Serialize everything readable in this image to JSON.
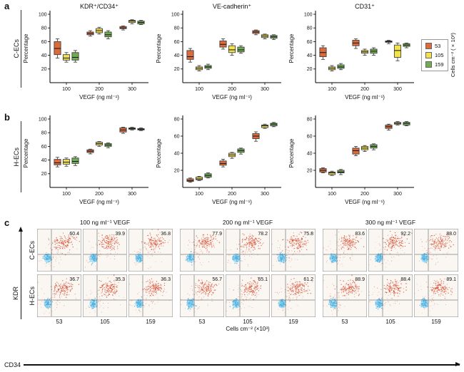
{
  "panels": {
    "a": {
      "label": "a",
      "row_label": "C-ECs"
    },
    "b": {
      "label": "b",
      "row_label": "H-ECs"
    },
    "c": {
      "label": "c"
    }
  },
  "legend": {
    "title": "Cells cm⁻² (×10³)",
    "items": [
      {
        "label": "53",
        "color": "#DC6B3C"
      },
      {
        "label": "105",
        "color": "#F2E24B"
      },
      {
        "label": "159",
        "color": "#6FAD50"
      }
    ]
  },
  "chart_data": [
    {
      "type": "box",
      "panel": "a",
      "group": "C-ECs",
      "title": "KDR⁺/CD34⁺",
      "xlabel": "VEGF (ng ml⁻¹)",
      "ylabel": "Percentage",
      "ylim": [
        0,
        100
      ],
      "y_ticks": [
        20,
        40,
        60,
        80,
        100
      ],
      "categories": [
        100,
        200,
        300
      ],
      "series": [
        {
          "name": "53",
          "color": "#DC6B3C",
          "boxes": [
            [
              36,
              41,
              50,
              60,
              64
            ],
            [
              68,
              70,
              72,
              74,
              76
            ],
            [
              77,
              79,
              80,
              82,
              83
            ]
          ]
        },
        {
          "name": "105",
          "color": "#F2E24B",
          "boxes": [
            [
              30,
              33,
              36,
              41,
              44
            ],
            [
              71,
              73,
              76,
              79,
              81
            ],
            [
              86,
              88,
              90,
              91,
              92
            ]
          ]
        },
        {
          "name": "159",
          "color": "#6FAD50",
          "boxes": [
            [
              30,
              33,
              37,
              44,
              47
            ],
            [
              64,
              67,
              70,
              74,
              76
            ],
            [
              85,
              86,
              88,
              90,
              91
            ]
          ]
        }
      ]
    },
    {
      "type": "box",
      "panel": "a",
      "group": "C-ECs",
      "title": "VE-cadherin⁺",
      "xlabel": "VEGF (ng ml⁻¹)",
      "ylabel": "Percentage",
      "ylim": [
        0,
        100
      ],
      "y_ticks": [
        20,
        40,
        60,
        80,
        100
      ],
      "categories": [
        100,
        200,
        300
      ],
      "series": [
        {
          "name": "53",
          "color": "#DC6B3C",
          "boxes": [
            [
              30,
              34,
              38,
              47,
              50
            ],
            [
              49,
              52,
              56,
              61,
              64
            ],
            [
              70,
              72,
              74,
              76,
              77
            ]
          ]
        },
        {
          "name": "105",
          "color": "#F2E24B",
          "boxes": [
            [
              17,
              19,
              21,
              23,
              25
            ],
            [
              40,
              44,
              48,
              54,
              57
            ],
            [
              64,
              66,
              68,
              70,
              71
            ]
          ]
        },
        {
          "name": "159",
          "color": "#6FAD50",
          "boxes": [
            [
              19,
              21,
              23,
              25,
              27
            ],
            [
              43,
              45,
              48,
              52,
              54
            ],
            [
              63,
              65,
              67,
              69,
              70
            ]
          ]
        }
      ]
    },
    {
      "type": "box",
      "panel": "a",
      "group": "C-ECs",
      "title": "CD31⁺",
      "xlabel": "VEGF (ng ml⁻¹)",
      "ylabel": "Percentage",
      "ylim": [
        0,
        100
      ],
      "y_ticks": [
        20,
        40,
        60,
        80,
        100
      ],
      "categories": [
        100,
        200,
        300
      ],
      "series": [
        {
          "name": "53",
          "color": "#DC6B3C",
          "boxes": [
            [
              34,
              38,
              44,
              51,
              54
            ],
            [
              50,
              54,
              58,
              62,
              64
            ],
            [
              57,
              59,
              60,
              61,
              62
            ]
          ]
        },
        {
          "name": "105",
          "color": "#F2E24B",
          "boxes": [
            [
              17,
              19,
              21,
              23,
              25
            ],
            [
              40,
              43,
              45,
              47,
              49
            ],
            [
              32,
              37,
              47,
              55,
              58
            ]
          ]
        },
        {
          "name": "159",
          "color": "#6FAD50",
          "boxes": [
            [
              19,
              21,
              23,
              26,
              28
            ],
            [
              40,
              43,
              46,
              49,
              51
            ],
            [
              51,
              53,
              55,
              57,
              58
            ]
          ]
        }
      ]
    },
    {
      "type": "box",
      "panel": "b",
      "group": "H-ECs",
      "title": "",
      "xlabel": "VEGF (ng ml⁻¹)",
      "ylabel": "Percentage",
      "ylim": [
        0,
        100
      ],
      "y_ticks": [
        20,
        40,
        60,
        80,
        100
      ],
      "categories": [
        100,
        200,
        300
      ],
      "series": [
        {
          "name": "53",
          "color": "#DC6B3C",
          "boxes": [
            [
              30,
              33,
              36,
              41,
              44
            ],
            [
              49,
              51,
              53,
              55,
              56
            ],
            [
              79,
              81,
              84,
              87,
              88
            ]
          ]
        },
        {
          "name": "105",
          "color": "#F2E24B",
          "boxes": [
            [
              31,
              34,
              37,
              41,
              43
            ],
            [
              60,
              62,
              64,
              66,
              67
            ],
            [
              84,
              85,
              86,
              87,
              88
            ]
          ]
        },
        {
          "name": "159",
          "color": "#6FAD50",
          "boxes": [
            [
              32,
              35,
              38,
              43,
              45
            ],
            [
              58,
              60,
              62,
              64,
              65
            ],
            [
              83,
              84,
              85,
              86,
              87
            ]
          ]
        }
      ]
    },
    {
      "type": "box",
      "panel": "b",
      "group": "H-ECs",
      "title": "",
      "xlabel": "VEGF (ng ml⁻¹)",
      "ylabel": "Percentage",
      "ylim": [
        0,
        80
      ],
      "y_ticks": [
        20,
        40,
        60,
        80
      ],
      "categories": [
        100,
        200,
        300
      ],
      "series": [
        {
          "name": "53",
          "color": "#DC6B3C",
          "boxes": [
            [
              6,
              7,
              8,
              10,
              11
            ],
            [
              24,
              26,
              28,
              31,
              33
            ],
            [
              54,
              57,
              60,
              63,
              65
            ]
          ]
        },
        {
          "name": "105",
          "color": "#F2E24B",
          "boxes": [
            [
              8,
              9,
              10,
              12,
              13
            ],
            [
              34,
              36,
              38,
              40,
              41
            ],
            [
              69,
              70,
              72,
              73,
              74
            ]
          ]
        },
        {
          "name": "159",
          "color": "#6FAD50",
          "boxes": [
            [
              11,
              12,
              14,
              16,
              17
            ],
            [
              39,
              41,
              43,
              45,
              46
            ],
            [
              71,
              72,
              74,
              75,
              76
            ]
          ]
        }
      ]
    },
    {
      "type": "box",
      "panel": "b",
      "group": "H-ECs",
      "title": "",
      "xlabel": "VEGF (ng ml⁻¹)",
      "ylabel": "Percentage",
      "ylim": [
        0,
        80
      ],
      "y_ticks": [
        20,
        40,
        60,
        80
      ],
      "categories": [
        100,
        200,
        300
      ],
      "series": [
        {
          "name": "53",
          "color": "#DC6B3C",
          "boxes": [
            [
              17,
              18,
              20,
              22,
              23
            ],
            [
              37,
              39,
              43,
              46,
              48
            ],
            [
              67,
              69,
              71,
              73,
              74
            ]
          ]
        },
        {
          "name": "105",
          "color": "#F2E24B",
          "boxes": [
            [
              14,
              15,
              17,
              18,
              19
            ],
            [
              42,
              44,
              46,
              48,
              49
            ],
            [
              73,
              74,
              75,
              76,
              77
            ]
          ]
        },
        {
          "name": "159",
          "color": "#6FAD50",
          "boxes": [
            [
              15,
              17,
              18,
              20,
              21
            ],
            [
              44,
              46,
              48,
              50,
              51
            ],
            [
              72,
              73,
              75,
              76,
              77
            ]
          ]
        }
      ]
    },
    {
      "type": "scatter-grid",
      "panel": "c",
      "col_groups": [
        "100 ng ml⁻¹ VEGF",
        "200 ng ml⁻¹ VEGF",
        "300 ng ml⁻¹ VEGF"
      ],
      "col_ticks": [
        "53",
        "105",
        "159"
      ],
      "x_axis_label": "CD34",
      "y_axis_label": "KDR",
      "bottom_label": "Cells cm⁻² (×10³)",
      "rows": [
        {
          "label": "C-ECs",
          "values": [
            "60.4",
            "39.9",
            "36.8",
            "77.9",
            "78.2",
            "75.8",
            "83.6",
            "92.2",
            "88.0"
          ]
        },
        {
          "label": "H-ECs",
          "values": [
            "36.7",
            "35.3",
            "36.3",
            "56.7",
            "65.1",
            "61.2",
            "88.9",
            "88.4",
            "89.1"
          ]
        }
      ]
    }
  ]
}
